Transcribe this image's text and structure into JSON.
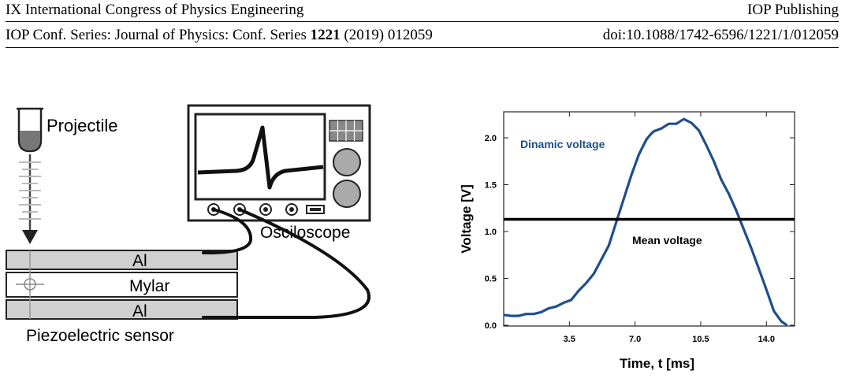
{
  "header": {
    "conference": "IX International Congress of Physics Engineering",
    "publisher": "IOP Publishing",
    "series_prefix": "IOP Conf. Series: Journal of Physics: Conf. Series ",
    "volume": "1221",
    "year_article": " (2019) 012059",
    "doi": "doi:10.1088/1742-6596/1221/1/012059"
  },
  "diagram": {
    "projectile_label": "Projectile",
    "oscilloscope_label": "Osciloscope",
    "layer_top": "Al",
    "layer_middle": "Mylar",
    "layer_bottom": "Al",
    "sensor_label": "Piezoelectric sensor"
  },
  "chart_data": {
    "type": "line",
    "title": "",
    "xlabel": "Time, t [ms]",
    "ylabel": "Voltage [V]",
    "xlim": [
      0,
      15.5
    ],
    "ylim": [
      0,
      2.2
    ],
    "xticks": [
      3.5,
      7.0,
      10.5,
      14.0
    ],
    "xtick_labels": [
      "3.5",
      "7.0",
      "10.5",
      "14.0"
    ],
    "yticks": [
      0.0,
      0.5,
      1.0,
      1.5,
      2.0
    ],
    "ytick_labels": [
      "0.0",
      "0.5",
      "1.0",
      "1.5",
      "2.0"
    ],
    "grid": false,
    "series": [
      {
        "name": "Dinamic voltage",
        "color": "#1f4e8c",
        "x": [
          0.0,
          0.4,
          0.8,
          1.2,
          1.6,
          2.0,
          2.4,
          2.8,
          3.2,
          3.6,
          4.0,
          4.4,
          4.8,
          5.2,
          5.6,
          6.0,
          6.4,
          6.8,
          7.2,
          7.6,
          7.8,
          8.0,
          8.4,
          8.8,
          9.2,
          9.6,
          10.0,
          10.4,
          10.8,
          11.2,
          11.6,
          12.0,
          12.4,
          12.8,
          13.2,
          13.6,
          14.0,
          14.4,
          14.8,
          15.1
        ],
        "y": [
          0.11,
          0.1,
          0.1,
          0.12,
          0.12,
          0.14,
          0.18,
          0.2,
          0.24,
          0.27,
          0.37,
          0.45,
          0.55,
          0.7,
          0.85,
          1.1,
          1.35,
          1.6,
          1.82,
          1.98,
          2.03,
          2.07,
          2.1,
          2.15,
          2.15,
          2.2,
          2.16,
          2.08,
          1.92,
          1.75,
          1.55,
          1.4,
          1.22,
          1.02,
          0.82,
          0.6,
          0.38,
          0.15,
          0.04,
          0.0
        ]
      },
      {
        "name": "Mean voltage",
        "color": "#000000",
        "x": [
          0.0,
          15.5
        ],
        "y": [
          1.13,
          1.13
        ]
      }
    ],
    "annotations": [
      "Dinamic voltage",
      "Mean voltage"
    ]
  }
}
